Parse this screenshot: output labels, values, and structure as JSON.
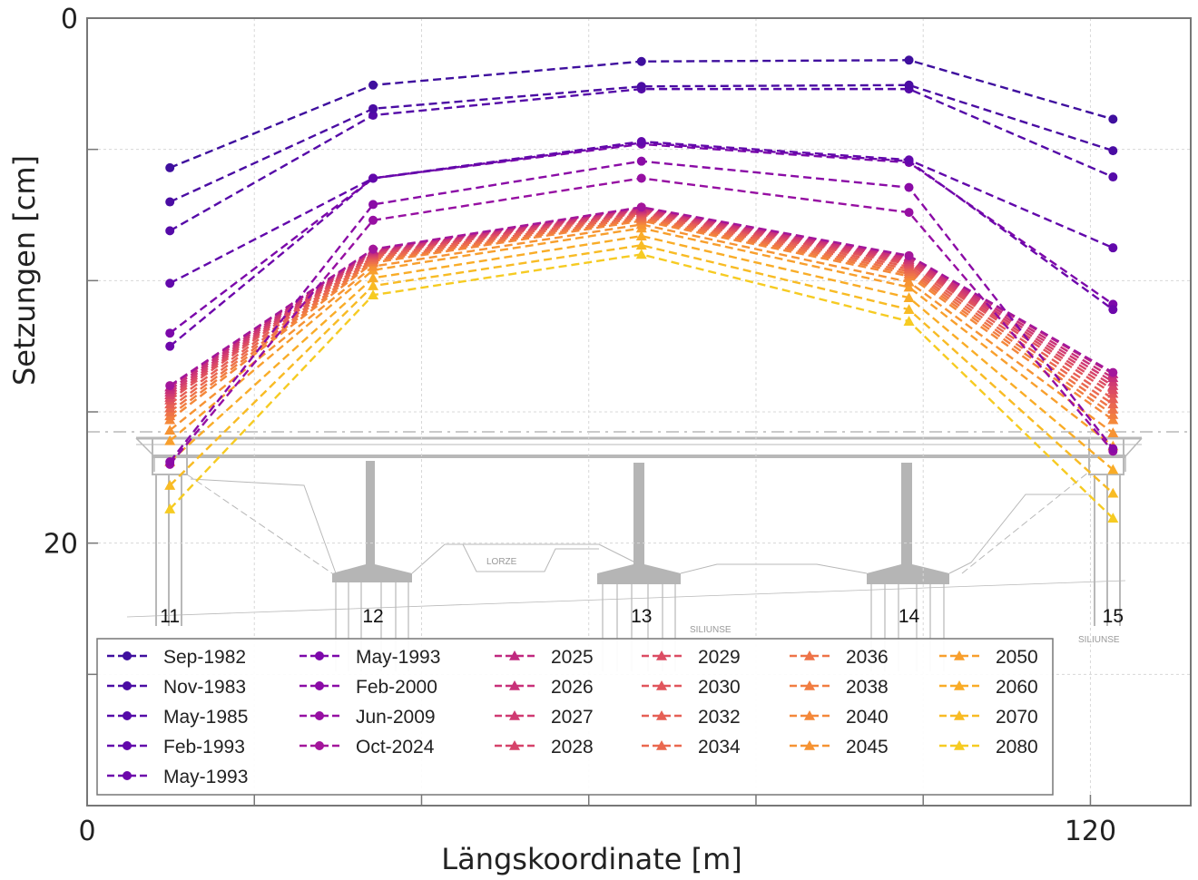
{
  "chart_data": {
    "type": "line",
    "title": "",
    "xlabel": "Längskoordinate [m]",
    "ylabel": "Setzungen [cm]",
    "xlim": [
      0,
      132
    ],
    "ylim": [
      0,
      30
    ],
    "y_inverted": true,
    "x_ticks": [
      0,
      20,
      40,
      60,
      80,
      100,
      120
    ],
    "x_tick_labels": [
      "0",
      "",
      "",
      "",
      "",
      "",
      "120"
    ],
    "y_ticks": [
      0,
      5,
      10,
      15,
      20,
      25
    ],
    "y_tick_labels": [
      "0",
      "",
      "",
      "",
      "20",
      ""
    ],
    "grid": true,
    "legend_position": "bottom-inside",
    "background_drawing": "bridge longitudinal section (piers 11–15, river LORZE)",
    "piers": [
      {
        "label": "11",
        "x": 9.9
      },
      {
        "label": "12",
        "x": 34.2
      },
      {
        "label": "13",
        "x": 66.3
      },
      {
        "label": "14",
        "x": 98.3
      },
      {
        "label": "15",
        "x": 122.7
      }
    ],
    "x": [
      9.9,
      34.2,
      66.3,
      98.3,
      122.7
    ],
    "series": [
      {
        "name": "Sep-1982",
        "marker": "circle",
        "color": "#3f0f9e",
        "values": [
          5.7,
          2.55,
          1.65,
          1.6,
          3.85
        ]
      },
      {
        "name": "Nov-1983",
        "marker": "circle",
        "color": "#4a0ca3",
        "values": [
          7.0,
          3.45,
          2.6,
          2.55,
          5.05
        ]
      },
      {
        "name": "May-1985",
        "marker": "circle",
        "color": "#550aa8",
        "values": [
          8.1,
          3.7,
          2.7,
          2.7,
          6.05
        ]
      },
      {
        "name": "Feb-1993",
        "marker": "circle",
        "color": "#6208ab",
        "values": [
          10.1,
          6.1,
          4.7,
          5.4,
          8.75
        ]
      },
      {
        "name": "May-1993",
        "marker": "circle",
        "color": "#6d07ab",
        "values": [
          12.5,
          6.1,
          4.75,
          5.45,
          11.1
        ]
      },
      {
        "name": "May-1993",
        "marker": "circle",
        "color": "#7c08aa",
        "values": [
          12.0,
          6.1,
          4.8,
          5.5,
          10.9
        ]
      },
      {
        "name": "Feb-2000",
        "marker": "circle",
        "color": "#8a0ba6",
        "values": [
          16.9,
          7.1,
          5.45,
          6.45,
          16.4
        ]
      },
      {
        "name": "Jun-2009",
        "marker": "circle",
        "color": "#960fa2",
        "values": [
          17.0,
          7.7,
          6.1,
          7.4,
          16.5
        ]
      },
      {
        "name": "Oct-2024",
        "marker": "circle",
        "color": "#a3169b",
        "values": [
          14.0,
          8.8,
          7.2,
          9.05,
          13.5
        ]
      },
      {
        "name": "2025",
        "marker": "triangle",
        "color": "#c0287f",
        "values": [
          14.05,
          8.82,
          7.22,
          9.08,
          13.55
        ]
      },
      {
        "name": "2026",
        "marker": "triangle",
        "color": "#c83079",
        "values": [
          14.15,
          8.86,
          7.26,
          9.14,
          13.7
        ]
      },
      {
        "name": "2027",
        "marker": "triangle",
        "color": "#d03a72",
        "values": [
          14.25,
          8.9,
          7.3,
          9.2,
          13.85
        ]
      },
      {
        "name": "2028",
        "marker": "triangle",
        "color": "#d6436a",
        "values": [
          14.35,
          8.94,
          7.34,
          9.26,
          14.0
        ]
      },
      {
        "name": "2029",
        "marker": "triangle",
        "color": "#dc4c63",
        "values": [
          14.45,
          8.98,
          7.38,
          9.32,
          14.15
        ]
      },
      {
        "name": "2030",
        "marker": "triangle",
        "color": "#e1555c",
        "values": [
          14.55,
          9.02,
          7.42,
          9.38,
          14.3
        ]
      },
      {
        "name": "2032",
        "marker": "triangle",
        "color": "#e65f55",
        "values": [
          14.7,
          9.08,
          7.48,
          9.47,
          14.5
        ]
      },
      {
        "name": "2034",
        "marker": "triangle",
        "color": "#ea684f",
        "values": [
          14.85,
          9.14,
          7.54,
          9.56,
          14.7
        ]
      },
      {
        "name": "2036",
        "marker": "triangle",
        "color": "#ee7348",
        "values": [
          15.0,
          9.2,
          7.6,
          9.65,
          14.9
        ]
      },
      {
        "name": "2038",
        "marker": "triangle",
        "color": "#f17d41",
        "values": [
          15.15,
          9.26,
          7.66,
          9.74,
          15.1
        ]
      },
      {
        "name": "2040",
        "marker": "triangle",
        "color": "#f4883a",
        "values": [
          15.3,
          9.32,
          7.72,
          9.83,
          15.3
        ]
      },
      {
        "name": "2045",
        "marker": "triangle",
        "color": "#f69333",
        "values": [
          15.7,
          9.46,
          7.86,
          10.05,
          15.8
        ]
      },
      {
        "name": "2050",
        "marker": "triangle",
        "color": "#f89f2d",
        "values": [
          16.1,
          9.6,
          8.0,
          10.25,
          16.3
        ]
      },
      {
        "name": "2060",
        "marker": "triangle",
        "color": "#f9ac27",
        "values": [
          16.9,
          9.9,
          8.3,
          10.65,
          17.2
        ]
      },
      {
        "name": "2070",
        "marker": "triangle",
        "color": "#f8bb24",
        "values": [
          17.8,
          10.2,
          8.65,
          11.1,
          18.1
        ]
      },
      {
        "name": "2080",
        "marker": "triangle",
        "color": "#f6cb22",
        "values": [
          18.7,
          10.55,
          9.0,
          11.55,
          19.05
        ]
      }
    ]
  }
}
